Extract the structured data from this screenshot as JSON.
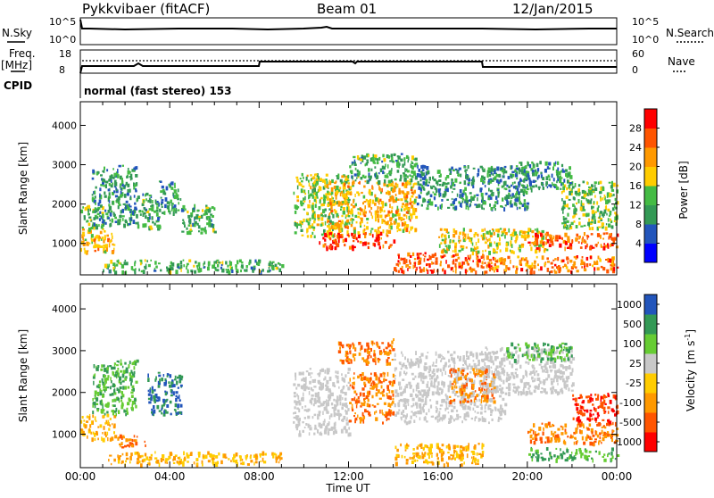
{
  "header": {
    "radar": "Pykkvibaer (fitACF)",
    "beam": "Beam 01",
    "date": "12/Jan/2015"
  },
  "strip": {
    "nsky_label": "N.Sky",
    "nsky_ticks": [
      "10^5",
      "10^0"
    ],
    "nsearch_label": "N.Search",
    "nsearch_ticks": [
      "10^5",
      "10^0"
    ],
    "freq_label_1": "Freq.",
    "freq_label_2": "[MHz]",
    "freq_ticks": [
      "18",
      "8"
    ],
    "nave_label": "Nave",
    "nave_ticks": [
      "60",
      "0"
    ],
    "cpid_label": "CPID",
    "cpid_text": "normal (fast stereo) 153"
  },
  "colors": {
    "power_scale": [
      "#0000ff",
      "#2255bb",
      "#339955",
      "#44bb44",
      "#ffcc00",
      "#ff9900",
      "#ff5500",
      "#ff0000"
    ],
    "velocity_scale": [
      "#ff0000",
      "#ff5500",
      "#ff9900",
      "#ffcc00",
      "#c8c8c8",
      "#66cc33",
      "#339955",
      "#2255bb"
    ]
  },
  "chart_data": [
    {
      "type": "heatmap",
      "title": "",
      "xlabel": "Time UT",
      "ylabel": "Slant Range [km]",
      "x_ticks": [
        "00:00",
        "04:00",
        "08:00",
        "12:00",
        "16:00",
        "20:00",
        "00:00"
      ],
      "xlim_hours": [
        0,
        24
      ],
      "y_ticks": [
        1000,
        2000,
        3000,
        4000
      ],
      "ylim": [
        200,
        4600
      ],
      "colorbar_label": "Power [dB]",
      "colorbar_ticks": [
        "4",
        "8",
        "12",
        "16",
        "20",
        "24",
        "28"
      ],
      "colorbar_range": [
        0,
        32
      ],
      "regions": [
        {
          "x": [
            0.0,
            1.5
          ],
          "y": [
            800,
            1400
          ],
          "value": 20
        },
        {
          "x": [
            0.0,
            1.0
          ],
          "y": [
            1400,
            2000
          ],
          "value": 14
        },
        {
          "x": [
            0.5,
            2.5
          ],
          "y": [
            1500,
            3000
          ],
          "value": 10
        },
        {
          "x": [
            2.5,
            3.5
          ],
          "y": [
            1400,
            2300
          ],
          "value": 12
        },
        {
          "x": [
            3.5,
            4.5
          ],
          "y": [
            1800,
            2600
          ],
          "value": 11
        },
        {
          "x": [
            4.5,
            6.0
          ],
          "y": [
            1300,
            2000
          ],
          "value": 12
        },
        {
          "x": [
            1.0,
            9.0
          ],
          "y": [
            300,
            600
          ],
          "value": 12
        },
        {
          "x": [
            9.5,
            12.0
          ],
          "y": [
            1200,
            2800
          ],
          "value": 16
        },
        {
          "x": [
            10.5,
            14.0
          ],
          "y": [
            900,
            1300
          ],
          "value": 28
        },
        {
          "x": [
            11.0,
            15.0
          ],
          "y": [
            1300,
            2600
          ],
          "value": 20
        },
        {
          "x": [
            12.0,
            15.0
          ],
          "y": [
            2600,
            3300
          ],
          "value": 12
        },
        {
          "x": [
            14.0,
            18.0
          ],
          "y": [
            300,
            800
          ],
          "value": 26
        },
        {
          "x": [
            15.0,
            20.0
          ],
          "y": [
            1900,
            3000
          ],
          "value": 10
        },
        {
          "x": [
            16.0,
            21.0
          ],
          "y": [
            800,
            1400
          ],
          "value": 18
        },
        {
          "x": [
            18.0,
            24.0
          ],
          "y": [
            300,
            700
          ],
          "value": 24
        },
        {
          "x": [
            20.0,
            24.0
          ],
          "y": [
            900,
            1300
          ],
          "value": 26
        },
        {
          "x": [
            21.5,
            24.0
          ],
          "y": [
            1400,
            2600
          ],
          "value": 14
        },
        {
          "x": [
            19.5,
            22.0
          ],
          "y": [
            2400,
            3100
          ],
          "value": 10
        }
      ]
    },
    {
      "type": "heatmap",
      "title": "",
      "xlabel": "Time UT",
      "ylabel": "Slant Range [km]",
      "x_ticks": [
        "00:00",
        "04:00",
        "08:00",
        "12:00",
        "16:00",
        "20:00",
        "00:00"
      ],
      "xlim_hours": [
        0,
        24
      ],
      "y_ticks": [
        1000,
        2000,
        3000,
        4000
      ],
      "ylim": [
        200,
        4600
      ],
      "colorbar_label": "Velocity",
      "colorbar_unit": "[m s",
      "colorbar_unit_exp": "-1",
      "colorbar_unit_close": "]",
      "colorbar_ticks": [
        "1000",
        "500",
        "100",
        "25",
        "-25",
        "-100",
        "-500",
        "-1000"
      ],
      "regions": [
        {
          "x": [
            0.0,
            1.5
          ],
          "y": [
            900,
            1500
          ],
          "value": -100
        },
        {
          "x": [
            0.5,
            2.5
          ],
          "y": [
            1500,
            2800
          ],
          "value": 100
        },
        {
          "x": [
            1.5,
            3.0
          ],
          "y": [
            700,
            1000
          ],
          "value": -500
        },
        {
          "x": [
            3.0,
            4.5
          ],
          "y": [
            1500,
            2500
          ],
          "value": 500
        },
        {
          "x": [
            1.0,
            9.0
          ],
          "y": [
            300,
            600
          ],
          "value": -100
        },
        {
          "x": [
            9.5,
            12.0
          ],
          "y": [
            1000,
            2600
          ],
          "value": 0
        },
        {
          "x": [
            11.5,
            14.0
          ],
          "y": [
            2700,
            3300
          ],
          "value": -500
        },
        {
          "x": [
            12.0,
            14.0
          ],
          "y": [
            1300,
            2500
          ],
          "value": -500
        },
        {
          "x": [
            14.0,
            19.0
          ],
          "y": [
            1300,
            3000
          ],
          "value": 0
        },
        {
          "x": [
            14.0,
            18.0
          ],
          "y": [
            300,
            800
          ],
          "value": -100
        },
        {
          "x": [
            16.5,
            18.5
          ],
          "y": [
            1800,
            2600
          ],
          "value": -500
        },
        {
          "x": [
            18.0,
            22.0
          ],
          "y": [
            2000,
            3100
          ],
          "value": 0
        },
        {
          "x": [
            20.0,
            24.0
          ],
          "y": [
            800,
            1300
          ],
          "value": -500
        },
        {
          "x": [
            19.0,
            22.0
          ],
          "y": [
            2800,
            3200
          ],
          "value": 100
        },
        {
          "x": [
            20.0,
            24.0
          ],
          "y": [
            400,
            700
          ],
          "value": 100
        },
        {
          "x": [
            22.0,
            24.0
          ],
          "y": [
            1300,
            2000
          ],
          "value": -1000
        }
      ]
    }
  ]
}
